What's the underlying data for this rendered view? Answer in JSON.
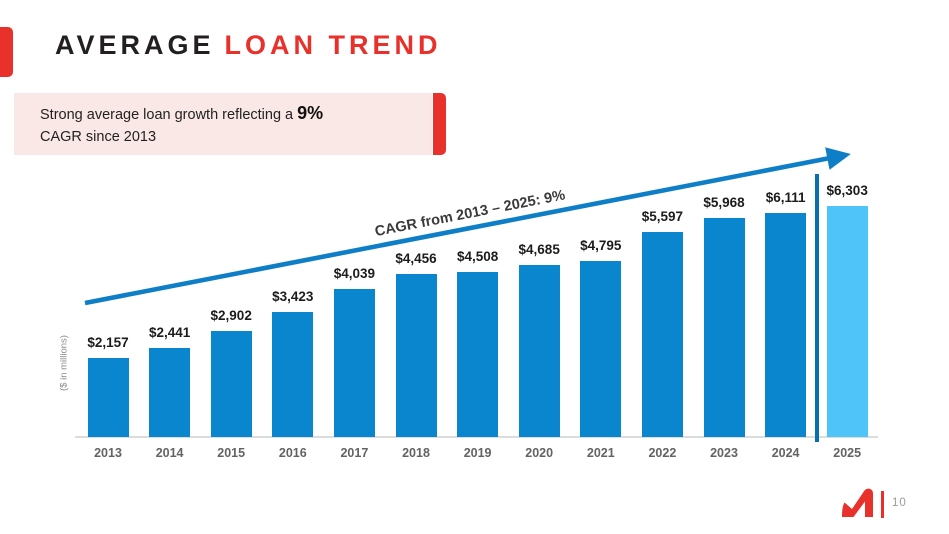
{
  "slide": {
    "title": {
      "part1": "AVERAGE",
      "part2": "LOAN TREND"
    },
    "callout": {
      "line1_prefix": "Strong average loan growth reflecting a ",
      "bold": "9%",
      "line2": "CAGR since 2013"
    },
    "footer": {
      "page_number": "10",
      "logo_name": "brand-logo"
    },
    "colors": {
      "accent_red": "#e8312a",
      "callout_pink": "#fae8e6",
      "title_dark": "#231f20"
    }
  },
  "chart_data": {
    "type": "bar",
    "title": "Average Loan Trend",
    "categories": [
      "2013",
      "2014",
      "2015",
      "2016",
      "2017",
      "2018",
      "2019",
      "2020",
      "2021",
      "2022",
      "2023",
      "2024",
      "2025"
    ],
    "values": [
      2157,
      2441,
      2902,
      3423,
      4039,
      4456,
      4508,
      4685,
      4795,
      5597,
      5968,
      6111,
      6303
    ],
    "value_labels": [
      "$2,157",
      "$2,441",
      "$2,902",
      "$3,423",
      "$4,039",
      "$4,456",
      "$4,508",
      "$4,685",
      "$4,795",
      "$5,597",
      "$5,968",
      "$6,111",
      "$6,303"
    ],
    "ylabel": "($ in millions)",
    "xlabel": "",
    "annotation": "CAGR from 2013 – 2025: 9%",
    "legend": [],
    "grid": false,
    "ylim": [
      0,
      6600
    ],
    "bar_color": "#0986cd",
    "projected_bar_color": "#4ec4f8",
    "projected_index": 12,
    "arrow_color": "#0e7ec6",
    "divider_color": "#0a6fae"
  }
}
